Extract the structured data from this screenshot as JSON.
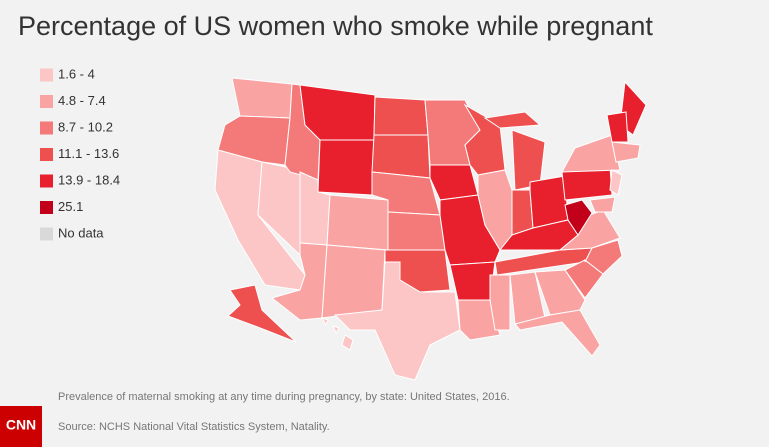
{
  "header": {
    "title": "Percentage of US women who smoke while pregnant"
  },
  "legend": [
    {
      "label": "1.6 - 4",
      "color": "#fcc6c6"
    },
    {
      "label": "4.8 - 7.4",
      "color": "#f9a3a3"
    },
    {
      "label": "8.7 - 10.2",
      "color": "#f47a7a"
    },
    {
      "label": "11.1 - 13.6",
      "color": "#ee5050"
    },
    {
      "label": "13.9 - 18.4",
      "color": "#e81f2c"
    },
    {
      "label": "25.1",
      "color": "#c20019"
    },
    {
      "label": "No data",
      "color": "#d9d9d9"
    }
  ],
  "footer": {
    "note": "Prevalence of maternal smoking at any time during pregnancy, by state: United States, 2016.",
    "source": "Source: NCHS National Vital Statistics System, Natality.",
    "logo": "CNN"
  }
}
